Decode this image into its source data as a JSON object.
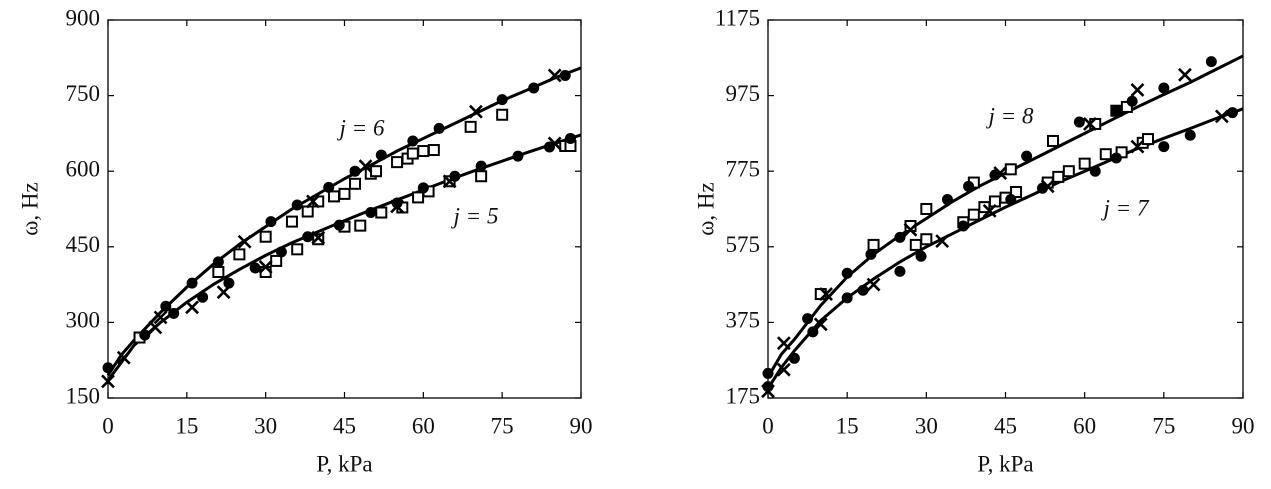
{
  "chart_data": [
    {
      "type": "line",
      "xlabel": "P, kPa",
      "ylabel": "ω, Hz",
      "xlim": [
        0,
        90
      ],
      "xticks": [
        0,
        15,
        30,
        45,
        60,
        75,
        90
      ],
      "ylim": [
        150,
        900
      ],
      "yticks": [
        150,
        300,
        450,
        600,
        750,
        900
      ],
      "annotations": [
        "j = 6",
        "j = 5"
      ],
      "series": [
        {
          "marker": "line",
          "color": "#000000",
          "x": [
            0,
            2.5,
            5,
            10,
            15,
            20,
            25,
            30,
            35,
            40,
            45,
            50,
            55,
            60,
            65,
            70,
            75,
            80,
            85,
            90
          ],
          "values": [
            195,
            235,
            265,
            320,
            370,
            415,
            455,
            490,
            525,
            555,
            585,
            612,
            640,
            665,
            690,
            715,
            740,
            762,
            785,
            805
          ]
        },
        {
          "marker": "line",
          "color": "#000000",
          "x": [
            0,
            2.5,
            5,
            10,
            15,
            20,
            25,
            30,
            35,
            40,
            45,
            50,
            55,
            60,
            65,
            70,
            75,
            80,
            85,
            90
          ],
          "values": [
            185,
            220,
            255,
            300,
            340,
            375,
            405,
            433,
            458,
            480,
            502,
            523,
            543,
            563,
            583,
            602,
            620,
            638,
            655,
            672
          ]
        },
        {
          "marker": "s",
          "color": "#000000",
          "x": [
            21,
            25,
            30,
            35,
            38,
            40,
            43,
            45,
            47,
            50,
            51,
            55,
            57,
            58,
            60,
            62,
            69,
            75
          ],
          "values": [
            400,
            435,
            470,
            500,
            520,
            540,
            550,
            555,
            575,
            595,
            600,
            618,
            625,
            635,
            640,
            642,
            688,
            712
          ]
        },
        {
          "marker": "s",
          "color": "#000000",
          "x": [
            6,
            30,
            32,
            36,
            40,
            45,
            48,
            52,
            56,
            59,
            61,
            65,
            71,
            87,
            88
          ],
          "values": [
            270,
            400,
            422,
            445,
            465,
            490,
            492,
            518,
            528,
            548,
            560,
            580,
            590,
            650,
            650
          ]
        },
        {
          "marker": "o",
          "color": "#000000",
          "x": [
            0,
            7,
            11,
            16,
            21,
            31,
            36,
            42,
            47,
            52,
            58,
            63,
            75,
            81,
            87
          ],
          "values": [
            210,
            275,
            332,
            378,
            420,
            500,
            533,
            568,
            600,
            632,
            660,
            685,
            742,
            765,
            790
          ]
        },
        {
          "marker": "o",
          "color": "#000000",
          "x": [
            12.5,
            18,
            23,
            28,
            33,
            38,
            44,
            50,
            55,
            60,
            66,
            71,
            78,
            84,
            88
          ],
          "values": [
            318,
            350,
            378,
            408,
            440,
            470,
            493,
            518,
            537,
            567,
            590,
            610,
            630,
            648,
            665
          ]
        },
        {
          "marker": "x",
          "color": "#000000",
          "x": [
            10,
            26,
            39,
            49,
            70,
            85
          ],
          "values": [
            310,
            460,
            540,
            610,
            718,
            790
          ]
        },
        {
          "marker": "x",
          "color": "#000000",
          "x": [
            0,
            3,
            9,
            16,
            22,
            30,
            40,
            55,
            65,
            85
          ],
          "values": [
            183,
            230,
            290,
            330,
            360,
            410,
            468,
            530,
            580,
            655
          ]
        }
      ]
    },
    {
      "type": "line",
      "xlabel": "P, kPa",
      "ylabel": "ω, Hz",
      "xlim": [
        0,
        90
      ],
      "xticks": [
        0,
        15,
        30,
        45,
        60,
        75,
        90
      ],
      "ylim": [
        175,
        1175
      ],
      "yticks": [
        175,
        375,
        575,
        775,
        975,
        1175
      ],
      "annotations": [
        "j = 8",
        "j = 7"
      ],
      "series": [
        {
          "marker": "line",
          "color": "#000000",
          "x": [
            0,
            2.5,
            5,
            10,
            15,
            20,
            25,
            30,
            35,
            40,
            45,
            50,
            55,
            60,
            65,
            70,
            75,
            80,
            85,
            90
          ],
          "values": [
            230,
            290,
            330,
            420,
            495,
            555,
            605,
            650,
            695,
            735,
            770,
            805,
            840,
            875,
            910,
            945,
            978,
            1010,
            1045,
            1080
          ]
        },
        {
          "marker": "line",
          "color": "#000000",
          "x": [
            0,
            2.5,
            5,
            10,
            15,
            20,
            25,
            30,
            35,
            40,
            45,
            50,
            55,
            60,
            65,
            70,
            75,
            80,
            85,
            90
          ],
          "values": [
            200,
            255,
            300,
            380,
            440,
            490,
            535,
            575,
            610,
            645,
            680,
            712,
            745,
            775,
            805,
            835,
            862,
            888,
            915,
            940
          ]
        },
        {
          "marker": "s",
          "color": "#000000",
          "x": [
            10,
            20,
            27,
            30,
            39,
            46,
            54,
            62,
            66,
            68
          ],
          "values": [
            450,
            580,
            630,
            675,
            745,
            780,
            855,
            900,
            935,
            945
          ]
        },
        {
          "marker": "s",
          "color": "#000000",
          "x": [
            28,
            30,
            37,
            39,
            41,
            43,
            45,
            47,
            53,
            55,
            57,
            60,
            64,
            67,
            71,
            72
          ],
          "values": [
            580,
            595,
            640,
            660,
            680,
            695,
            705,
            720,
            745,
            760,
            775,
            795,
            820,
            825,
            850,
            860
          ]
        },
        {
          "marker": "o",
          "color": "#000000",
          "x": [
            0,
            7.5,
            15,
            19.5,
            25,
            34,
            38,
            43,
            49,
            59,
            66,
            69,
            75,
            84
          ],
          "values": [
            240,
            385,
            505,
            555,
            600,
            700,
            735,
            765,
            815,
            905,
            935,
            960,
            995,
            1065
          ]
        },
        {
          "marker": "o",
          "color": "#000000",
          "x": [
            0,
            5,
            8.5,
            15,
            18,
            25,
            29,
            37,
            46,
            52,
            62,
            66,
            75,
            80,
            88
          ],
          "values": [
            205,
            280,
            350,
            440,
            460,
            510,
            550,
            630,
            700,
            730,
            775,
            810,
            840,
            870,
            930
          ]
        },
        {
          "marker": "x",
          "color": "#000000",
          "x": [
            3,
            11,
            27,
            44,
            61,
            70,
            79
          ],
          "values": [
            320,
            450,
            620,
            770,
            900,
            990,
            1030
          ]
        },
        {
          "marker": "x",
          "color": "#000000",
          "x": [
            0,
            3,
            10,
            20,
            33,
            42,
            53,
            70,
            86
          ],
          "values": [
            193,
            250,
            370,
            475,
            590,
            670,
            735,
            840,
            920
          ]
        }
      ]
    }
  ]
}
